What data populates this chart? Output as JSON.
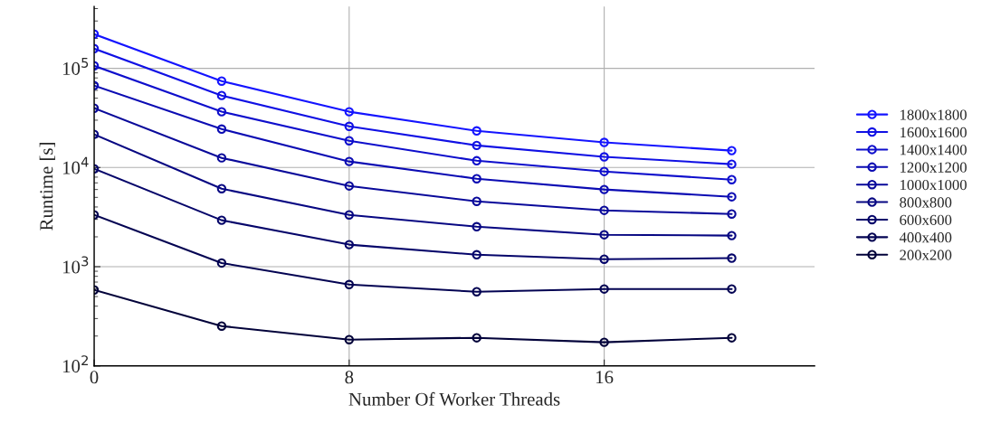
{
  "chart_data": {
    "type": "line",
    "xlabel": "Number Of Worker Threads",
    "ylabel": "Runtime [s]",
    "x": [
      0,
      4,
      8,
      12,
      16,
      20
    ],
    "series": [
      {
        "name": "1800x1800",
        "color": "#1414ff",
        "values": [
          221000,
          74300,
          36500,
          23400,
          17900,
          14800
        ]
      },
      {
        "name": "1600x1600",
        "color": "#1010e4",
        "values": [
          158000,
          53200,
          26000,
          16700,
          12800,
          10800
        ]
      },
      {
        "name": "1400x1400",
        "color": "#0e0ecc",
        "values": [
          106000,
          36500,
          18600,
          11700,
          9120,
          7550
        ]
      },
      {
        "name": "1200x1200",
        "color": "#0b0bb3",
        "values": [
          67000,
          24400,
          11500,
          7710,
          6000,
          5070
        ]
      },
      {
        "name": "1000x1000",
        "color": "#09099a",
        "values": [
          39600,
          12500,
          6520,
          4560,
          3700,
          3400
        ]
      },
      {
        "name": "800x800",
        "color": "#070782",
        "values": [
          21600,
          6120,
          3330,
          2530,
          2100,
          2060
        ]
      },
      {
        "name": "600x600",
        "color": "#05056a",
        "values": [
          9700,
          2940,
          1670,
          1320,
          1190,
          1220
        ]
      },
      {
        "name": "400x400",
        "color": "#030352",
        "values": [
          3330,
          1090,
          661,
          559,
          596,
          596
        ]
      },
      {
        "name": "200x200",
        "color": "#02023a",
        "values": [
          583,
          252,
          184,
          192,
          173,
          192
        ]
      }
    ],
    "log": "y",
    "xlim": [
      0,
      22.6
    ],
    "xticks": [
      0,
      8,
      16
    ],
    "ylim": [
      100,
      420000
    ],
    "yticks": [
      {
        "value": 100,
        "label": "10$^{2}$"
      },
      {
        "value": 1000,
        "label": "10$^{3}$"
      },
      {
        "value": 10000,
        "label": "10$^{4}$"
      },
      {
        "value": 100000,
        "label": "10$^{5}$"
      }
    ],
    "grid": true,
    "legend": "right",
    "marker": "circle",
    "line_style": "solid"
  }
}
